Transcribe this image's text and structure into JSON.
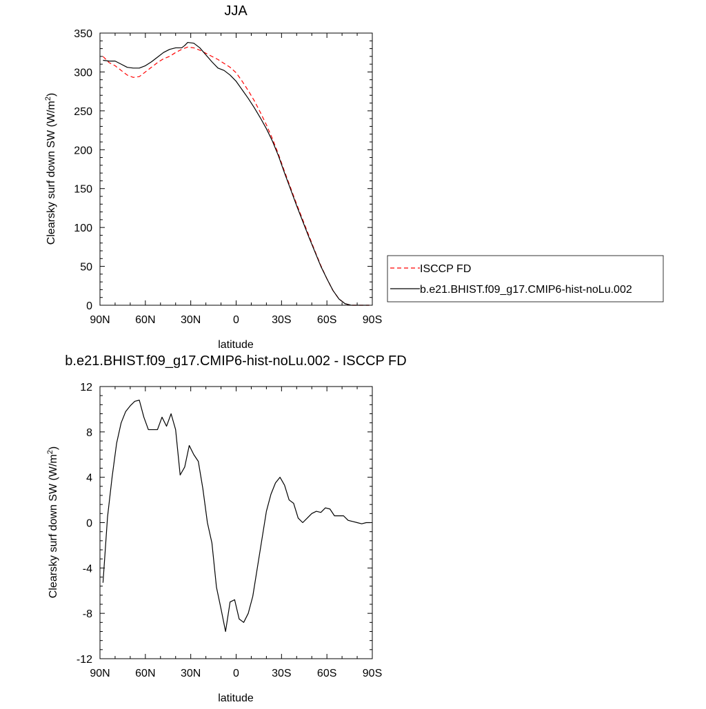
{
  "chart_data": [
    {
      "type": "line",
      "title": "JJA",
      "xlabel": "latitude",
      "ylabel_main": "Clearsky surf down SW (W/m",
      "ylabel_sup": "2",
      "ylabel_close": ")",
      "xlim": [
        90,
        -90
      ],
      "ylim": [
        0,
        350
      ],
      "x_ticks": [
        90,
        60,
        30,
        0,
        -30,
        -60,
        -90
      ],
      "x_tick_labels": [
        "90N",
        "60N",
        "30N",
        "0",
        "30S",
        "60S",
        "90S"
      ],
      "y_ticks": [
        0,
        50,
        100,
        150,
        200,
        250,
        300,
        350
      ],
      "y_tick_labels": [
        "0",
        "50",
        "100",
        "150",
        "200",
        "250",
        "300",
        "350"
      ],
      "legend_position": "right",
      "series": [
        {
          "name": "ISCCP FD",
          "color": "#ff0000",
          "dash": "dashed",
          "x": [
            88,
            84,
            80,
            76,
            72,
            68,
            64,
            60,
            56,
            52,
            48,
            44,
            40,
            36,
            32,
            28,
            24,
            20,
            16,
            12,
            8,
            4,
            0,
            -4,
            -8,
            -12,
            -16,
            -20,
            -24,
            -28,
            -32,
            -36,
            -40,
            -44,
            -48,
            -52,
            -56,
            -60,
            -64,
            -68,
            -72,
            -76,
            -80,
            -84,
            -88
          ],
          "y": [
            320,
            312,
            308,
            302,
            296,
            293,
            294,
            300,
            306,
            312,
            317,
            320,
            325,
            329,
            332,
            331,
            328,
            324,
            320,
            316,
            311,
            306,
            299,
            288,
            276,
            263,
            248,
            232,
            214,
            194,
            172,
            151,
            130,
            110,
            90,
            70,
            51,
            34,
            19,
            8,
            2,
            0,
            0,
            0,
            0
          ]
        },
        {
          "name": "b.e21.BHIST.f09_g17.CMIP6-hist-noLu.002",
          "color": "#000000",
          "dash": "solid",
          "x": [
            88,
            84,
            80,
            76,
            72,
            68,
            64,
            60,
            56,
            52,
            48,
            44,
            40,
            36,
            34,
            32,
            28,
            24,
            20,
            16,
            12,
            8,
            4,
            0,
            -4,
            -8,
            -12,
            -16,
            -20,
            -24,
            -28,
            -32,
            -36,
            -40,
            -44,
            -48,
            -52,
            -56,
            -60,
            -64,
            -68,
            -72,
            -76,
            -80,
            -84,
            -88
          ],
          "y": [
            315,
            314,
            314,
            310,
            306,
            305,
            305,
            308,
            313,
            319,
            325,
            329,
            331,
            331,
            334,
            338,
            337,
            331,
            322,
            313,
            305,
            302,
            296,
            288,
            277,
            266,
            254,
            241,
            227,
            211,
            192,
            170,
            149,
            128,
            108,
            88,
            69,
            50,
            34,
            19,
            8,
            2,
            0,
            0,
            0,
            0
          ]
        }
      ]
    },
    {
      "type": "line",
      "title": "b.e21.BHIST.f09_g17.CMIP6-hist-noLu.002 - ISCCP FD",
      "xlabel": "latitude",
      "ylabel_main": "Clearsky surf down SW (W/m",
      "ylabel_sup": "2",
      "ylabel_close": ")",
      "xlim": [
        90,
        -90
      ],
      "ylim": [
        -12,
        12
      ],
      "x_ticks": [
        90,
        60,
        30,
        0,
        -30,
        -60,
        -90
      ],
      "x_tick_labels": [
        "90N",
        "60N",
        "30N",
        "0",
        "30S",
        "60S",
        "90S"
      ],
      "y_ticks": [
        -12,
        -8,
        -4,
        0,
        4,
        8,
        12
      ],
      "y_tick_labels": [
        "-12",
        "-8",
        "-4",
        "0",
        "4",
        "8",
        "12"
      ],
      "series": [
        {
          "color": "#000000",
          "dash": "solid",
          "x": [
            88,
            85,
            82,
            79,
            76,
            73,
            70,
            67,
            64,
            61,
            58,
            55,
            52,
            49,
            46,
            43,
            40,
            37,
            34,
            31,
            28,
            25,
            22,
            19,
            16,
            13,
            10,
            7,
            4,
            1,
            -2,
            -5,
            -8,
            -11,
            -14,
            -17,
            -20,
            -23,
            -26,
            -29,
            -32,
            -35,
            -38,
            -41,
            -44,
            -47,
            -50,
            -53,
            -56,
            -59,
            -62,
            -65,
            -68,
            -71,
            -74,
            -77,
            -80,
            -83,
            -86,
            -89
          ],
          "y": [
            -5.3,
            0.5,
            4.0,
            7.0,
            8.8,
            9.8,
            10.3,
            10.7,
            10.8,
            9.3,
            8.2,
            8.2,
            8.2,
            9.3,
            8.5,
            9.6,
            8.2,
            4.2,
            4.9,
            6.8,
            6.0,
            5.4,
            3.0,
            0.0,
            -1.8,
            -5.7,
            -7.6,
            -9.6,
            -7.0,
            -6.8,
            -8.5,
            -8.8,
            -8.0,
            -6.5,
            -4.0,
            -1.5,
            1.0,
            2.5,
            3.5,
            4.0,
            3.3,
            2.0,
            1.7,
            0.4,
            0.0,
            0.4,
            0.8,
            1.0,
            0.9,
            1.3,
            1.2,
            0.6,
            0.6,
            0.6,
            0.2,
            0.1,
            0.0,
            -0.1,
            0.0,
            0.0
          ]
        }
      ]
    }
  ]
}
